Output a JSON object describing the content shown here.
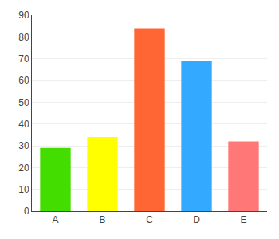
{
  "chart_data": {
    "type": "bar",
    "categories": [
      "A",
      "B",
      "C",
      "D",
      "E"
    ],
    "values": [
      29,
      34,
      84,
      69,
      32
    ],
    "colors": [
      "#44dd00",
      "#ffff00",
      "#ff6633",
      "#33aaff",
      "#ff7777"
    ],
    "ylim": [
      0,
      90
    ],
    "yticks": [
      0,
      10,
      20,
      30,
      40,
      50,
      60,
      70,
      80,
      90
    ],
    "grid": true
  }
}
